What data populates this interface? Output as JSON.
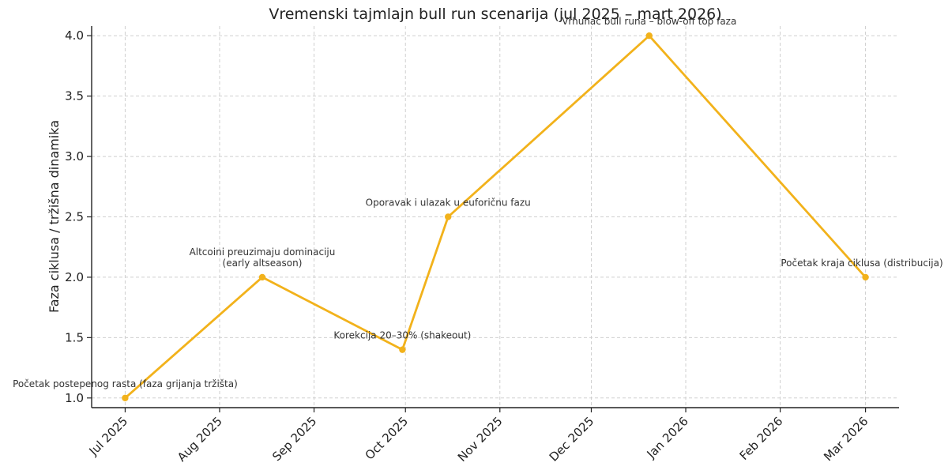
{
  "chart_data": {
    "type": "line",
    "title": "Vremenski tajmlajn bull run scenarija (jul 2025 – mart 2026)",
    "xlabel": "",
    "ylabel": "Faza ciklusa / tržišna dinamika",
    "x_ticks": [
      {
        "date": "2025-07-01",
        "label": "Jul 2025"
      },
      {
        "date": "2025-08-01",
        "label": "Aug 2025"
      },
      {
        "date": "2025-09-01",
        "label": "Sep 2025"
      },
      {
        "date": "2025-10-01",
        "label": "Oct 2025"
      },
      {
        "date": "2025-11-01",
        "label": "Nov 2025"
      },
      {
        "date": "2025-12-01",
        "label": "Dec 2025"
      },
      {
        "date": "2026-01-01",
        "label": "Jan 2026"
      },
      {
        "date": "2026-02-01",
        "label": "Feb 2026"
      },
      {
        "date": "2026-03-01",
        "label": "Mar 2026"
      }
    ],
    "y_ticks": [
      1.0,
      1.5,
      2.0,
      2.5,
      3.0,
      3.5,
      4.0
    ],
    "y_tick_labels": [
      "1.0",
      "1.5",
      "2.0",
      "2.5",
      "3.0",
      "3.5",
      "4.0"
    ],
    "ylim": [
      0.92,
      4.08
    ],
    "xlim": [
      "2025-06-20",
      "2026-03-12"
    ],
    "grid": true,
    "series": [
      {
        "color": "#f2b21b",
        "points": [
          {
            "x": "2025-07-01",
            "y": 1.0,
            "label": [
              "Početak postepenog rasta (faza grijanja tržišta)"
            ]
          },
          {
            "x": "2025-08-15",
            "y": 2.0,
            "label": [
              "Altcoini preuzimaju dominaciju",
              "(early altseason)"
            ]
          },
          {
            "x": "2025-09-30",
            "y": 1.4,
            "label": [
              "Korekcija 20–30% (shakeout)"
            ]
          },
          {
            "x": "2025-10-15",
            "y": 2.5,
            "label": [
              "Oporavak i ulazak u euforičnu fazu"
            ]
          },
          {
            "x": "2025-12-20",
            "y": 4.0,
            "label": [
              "Vrhunac bull runa – blow-off top faza"
            ]
          },
          {
            "x": "2026-03-01",
            "y": 2.0,
            "label": [
              "Početak kraja ciklusa (distribucija)"
            ]
          }
        ]
      }
    ]
  }
}
